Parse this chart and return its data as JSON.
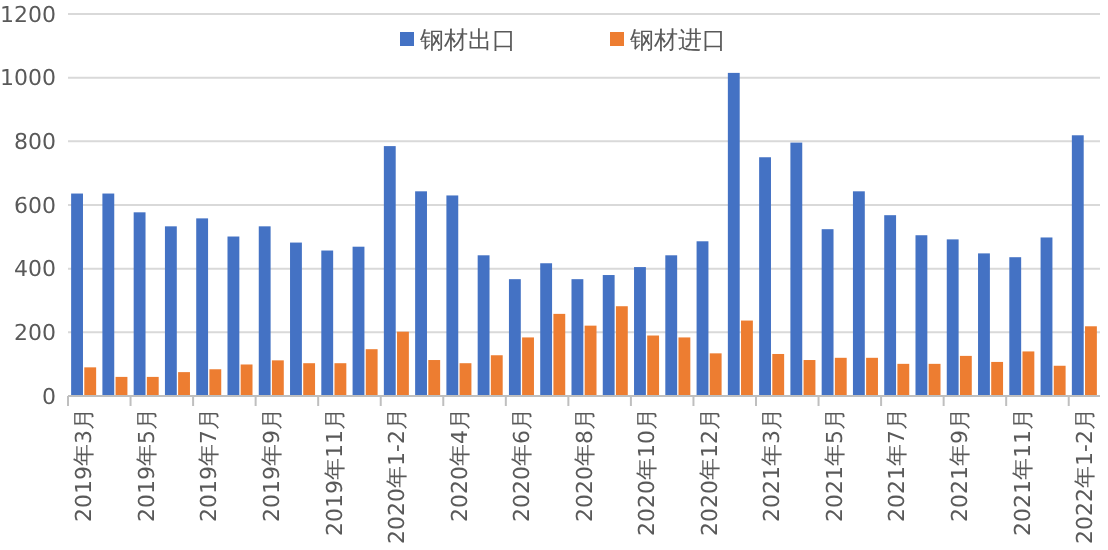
{
  "chart_data": {
    "type": "bar",
    "categories": [
      "2019年3月",
      null,
      "2019年5月",
      null,
      "2019年7月",
      null,
      "2019年9月",
      null,
      "2019年11月",
      null,
      "2020年1-2月",
      null,
      "2020年4月",
      null,
      "2020年6月",
      null,
      "2020年8月",
      null,
      "2020年10月",
      null,
      "2020年12月",
      null,
      "2021年3月",
      null,
      "2021年5月",
      null,
      "2021年7月",
      null,
      "2021年9月",
      null,
      "2021年11月",
      null,
      "2022年1-2月"
    ],
    "series": [
      {
        "name": "钢材出口",
        "color": "#4472c4",
        "values": [
          636,
          636,
          577,
          533,
          558,
          501,
          533,
          482,
          457,
          469,
          785,
          643,
          630,
          442,
          367,
          417,
          367,
          380,
          405,
          442,
          486,
          1015,
          750,
          796,
          524,
          643,
          568,
          505,
          492,
          448,
          436,
          498,
          819
        ]
      },
      {
        "name": "钢材进口",
        "color": "#ed7d31",
        "values": [
          90,
          60,
          60,
          75,
          84,
          99,
          112,
          103,
          103,
          147,
          202,
          113,
          103,
          128,
          184,
          258,
          221,
          282,
          190,
          184,
          134,
          237,
          132,
          113,
          120,
          120,
          101,
          101,
          126,
          107,
          140,
          95,
          219
        ]
      }
    ],
    "ylim": [
      0,
      1200
    ],
    "yticks": [
      0,
      200,
      400,
      600,
      800,
      1000,
      1200
    ],
    "grid": "y",
    "legend": "top"
  }
}
